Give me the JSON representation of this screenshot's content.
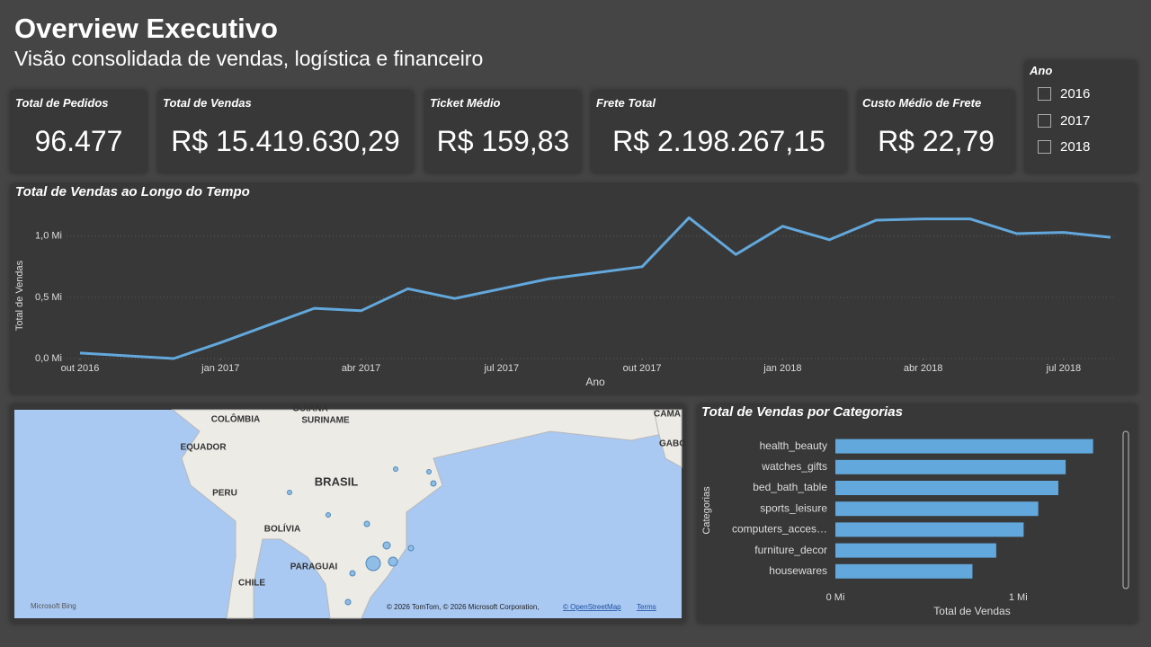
{
  "header": {
    "title": "Overview Executivo",
    "subtitle": "Visão consolidada de vendas, logística e financeiro"
  },
  "kpis": [
    {
      "label": "Total de Pedidos",
      "value": "96.477"
    },
    {
      "label": "Total de Vendas",
      "value": "R$ 15.419.630,29"
    },
    {
      "label": "Ticket Médio",
      "value": "R$ 159,83"
    },
    {
      "label": "Frete Total",
      "value": "R$ 2.198.267,15"
    },
    {
      "label": "Custo Médio de Frete",
      "value": "R$ 22,79"
    }
  ],
  "slicer": {
    "title": "Ano",
    "items": [
      "2016",
      "2017",
      "2018"
    ]
  },
  "map": {
    "labels": [
      "COLÔMBIA",
      "SURINAME",
      "GUIANA",
      "EQUADOR",
      "PERU",
      "BRASIL",
      "BOLÍVIA",
      "PARAGUAI",
      "CHILE",
      "CAMA",
      "GABO"
    ],
    "logo": "Microsoft Bing",
    "attribution": "© 2026 TomTom, © 2026 Microsoft Corporation,",
    "osm": "© OpenStreetMap",
    "terms": "Terms"
  },
  "chart_data": [
    {
      "type": "line",
      "title": "Total de Vendas ao Longo do Tempo",
      "x_label": "Ano",
      "y_label": "Total de Vendas",
      "color": "#62a8dc",
      "grid": true,
      "x": [
        "2016-10",
        "2016-12",
        "2017-01",
        "2017-02",
        "2017-03",
        "2017-04",
        "2017-05",
        "2017-06",
        "2017-07",
        "2017-08",
        "2017-09",
        "2017-10",
        "2017-11",
        "2017-12",
        "2018-01",
        "2018-02",
        "2018-03",
        "2018-04",
        "2018-05",
        "2018-06",
        "2018-07",
        "2018-08"
      ],
      "values": [
        0.045,
        0.0,
        0.13,
        0.27,
        0.41,
        0.39,
        0.57,
        0.49,
        0.57,
        0.65,
        0.7,
        0.75,
        1.15,
        0.85,
        1.08,
        0.97,
        1.13,
        1.14,
        1.14,
        1.02,
        1.03,
        0.99
      ],
      "xlim": [
        "2016-10",
        "2018-08"
      ],
      "xticks": [
        {
          "value": "2016-10",
          "label": "out 2016"
        },
        {
          "value": "2017-01",
          "label": "jan 2017"
        },
        {
          "value": "2017-04",
          "label": "abr 2017"
        },
        {
          "value": "2017-07",
          "label": "jul 2017"
        },
        {
          "value": "2017-10",
          "label": "out 2017"
        },
        {
          "value": "2018-01",
          "label": "jan 2018"
        },
        {
          "value": "2018-04",
          "label": "abr 2018"
        },
        {
          "value": "2018-07",
          "label": "jul 2018"
        }
      ],
      "ylim": [
        0,
        1.24
      ],
      "yticks": [
        {
          "value": 0,
          "label": "0,0 Mi"
        },
        {
          "value": 0.5,
          "label": "0,5 Mi"
        },
        {
          "value": 1,
          "label": "1,0 Mi"
        }
      ]
    },
    {
      "type": "hbar",
      "title": "Total de Vendas por Categorias",
      "x_label": "Total de Vendas",
      "y_label": "Categorias",
      "color": "#62a8dc",
      "categories": [
        "health_beauty",
        "watches_gifts",
        "bed_bath_table",
        "sports_leisure",
        "computers_acces…",
        "furniture_decor",
        "housewares"
      ],
      "values": [
        1.41,
        1.26,
        1.22,
        1.11,
        1.03,
        0.88,
        0.75
      ],
      "xlim": [
        0,
        1.53
      ],
      "xticks": [
        {
          "value": 0,
          "label": "0 Mi"
        },
        {
          "value": 1,
          "label": "1 Mi"
        }
      ]
    }
  ]
}
